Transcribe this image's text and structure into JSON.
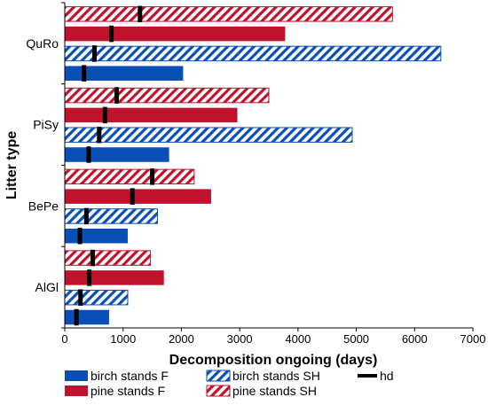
{
  "chart_data": {
    "type": "bar",
    "orientation": "horizontal",
    "xlabel": "Decomposition ongoing (days)",
    "ylabel": "Litter type",
    "xlim": [
      0,
      7000
    ],
    "xticks": [
      0,
      1000,
      2000,
      3000,
      4000,
      5000,
      6000,
      7000
    ],
    "grid": false,
    "legend_position": "bottom",
    "categories": [
      "AlGl",
      "BePe",
      "PiSy",
      "QuRo"
    ],
    "colors": {
      "blue": "#0a4fb5",
      "red": "#c0122c",
      "black": "#000000"
    },
    "series": [
      {
        "name": "birch stands F",
        "pattern": "solid",
        "color": "#0a4fb5",
        "values": [
          760,
          1080,
          1790,
          2030
        ]
      },
      {
        "name": "birch stands SH",
        "pattern": "hatched",
        "color": "#0a4fb5",
        "values": [
          1080,
          1590,
          4930,
          6450
        ]
      },
      {
        "name": "pine stands F",
        "pattern": "solid",
        "color": "#c0122c",
        "values": [
          1700,
          2510,
          2960,
          3780
        ]
      },
      {
        "name": "pine stands SH",
        "pattern": "hatched",
        "color": "#c0122c",
        "values": [
          1470,
          2220,
          3500,
          5620
        ]
      }
    ],
    "hd": {
      "name": "hd",
      "values": [
        [
          200,
          260,
          410,
          330
        ],
        [
          270,
          370,
          590,
          510
        ],
        [
          420,
          1160,
          690,
          800
        ],
        [
          480,
          1500,
          890,
          1290
        ]
      ]
    }
  }
}
